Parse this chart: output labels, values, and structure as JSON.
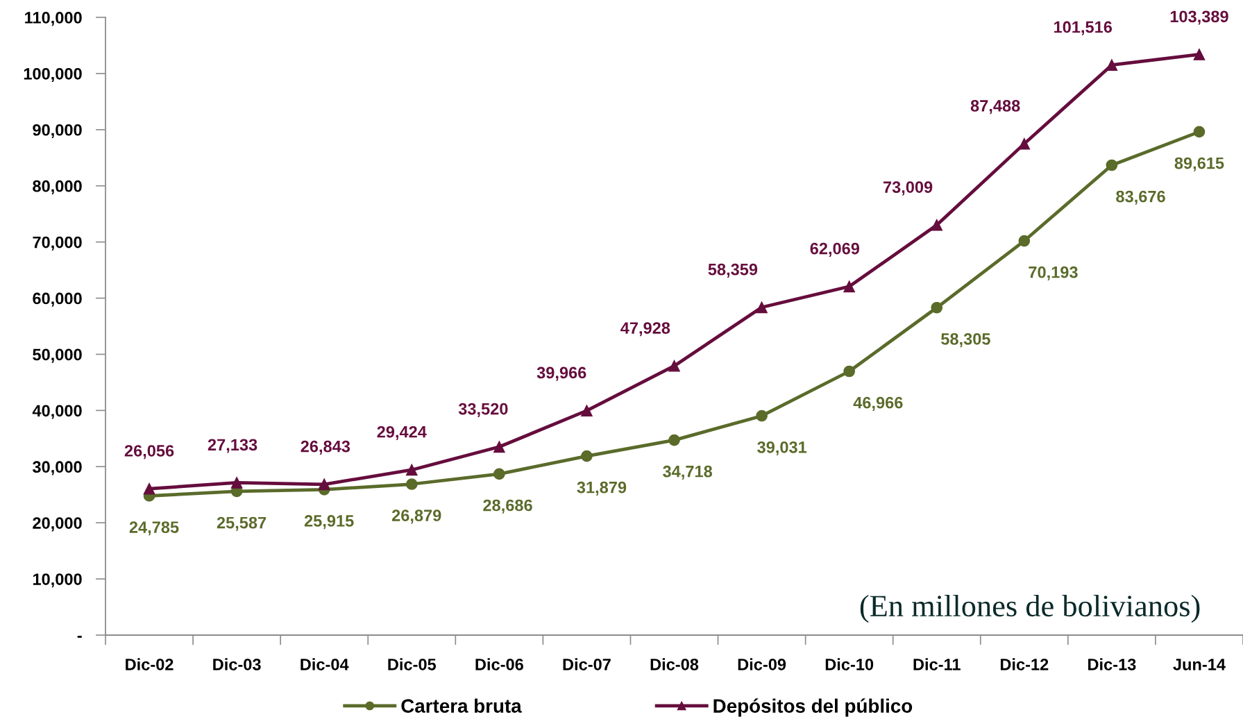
{
  "chart_data": {
    "type": "line",
    "categories": [
      "Dic-02",
      "Dic-03",
      "Dic-04",
      "Dic-05",
      "Dic-06",
      "Dic-07",
      "Dic-08",
      "Dic-09",
      "Dic-10",
      "Dic-11",
      "Dic-12",
      "Dic-13",
      "Jun-14"
    ],
    "series": [
      {
        "name": "Cartera bruta",
        "color": "#5a6b2a",
        "marker": "circle",
        "values": [
          24785,
          25587,
          25915,
          26879,
          28686,
          31879,
          34718,
          39031,
          46966,
          58305,
          70193,
          83676,
          89615
        ],
        "value_labels": [
          "24,785",
          "25,587",
          "25,915",
          "26,879",
          "28,686",
          "31,879",
          "34,718",
          "39,031",
          "46,966",
          "58,305",
          "70,193",
          "83,676",
          "89,615"
        ]
      },
      {
        "name": "Depósitos del público",
        "color": "#650d3d",
        "marker": "triangle",
        "values": [
          26056,
          27133,
          26843,
          29424,
          33520,
          39966,
          47928,
          58359,
          62069,
          73009,
          87488,
          101516,
          103389
        ],
        "value_labels": [
          "26,056",
          "27,133",
          "26,843",
          "29,424",
          "33,520",
          "39,966",
          "47,928",
          "58,359",
          "62,069",
          "73,009",
          "87,488",
          "101,516",
          "103,389"
        ]
      }
    ],
    "ylim": [
      0,
      110000
    ],
    "yticks": [
      {
        "value": 0,
        "label": "-"
      },
      {
        "value": 10000,
        "label": "10,000"
      },
      {
        "value": 20000,
        "label": "20,000"
      },
      {
        "value": 30000,
        "label": "30,000"
      },
      {
        "value": 40000,
        "label": "40,000"
      },
      {
        "value": 50000,
        "label": "50,000"
      },
      {
        "value": 60000,
        "label": "60,000"
      },
      {
        "value": 70000,
        "label": "70,000"
      },
      {
        "value": 80000,
        "label": "80,000"
      },
      {
        "value": 90000,
        "label": "90,000"
      },
      {
        "value": 100000,
        "label": "100,000"
      },
      {
        "value": 110000,
        "label": "110,000"
      }
    ],
    "annotations": [
      "(En millones de bolivianos)"
    ],
    "grid": false,
    "legend": "bottom",
    "line_style": "solid"
  }
}
